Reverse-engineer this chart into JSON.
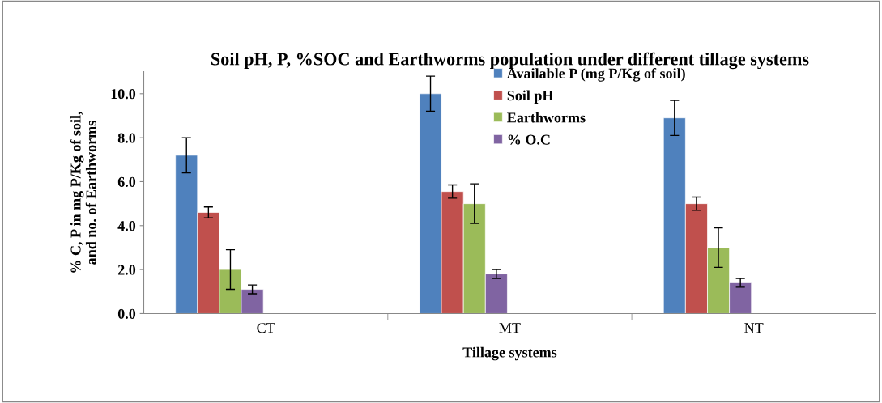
{
  "chart_data": {
    "type": "bar",
    "title": "Soil pH, P, %SOC and Earthworms population under different tillage systems",
    "xlabel": "Tillage systems",
    "ylabel": "% C, P in mg P/Kg of soil,\nand no. of Earthworms",
    "categories": [
      "CT",
      "MT",
      "NT"
    ],
    "series": [
      {
        "name": "Available P (mg P/Kg of soil)",
        "color": "#4f81bd",
        "values": [
          7.2,
          10.0,
          8.9
        ],
        "errors": [
          0.8,
          0.8,
          0.8
        ]
      },
      {
        "name": "Soil pH",
        "color": "#c0504d",
        "values": [
          4.6,
          5.55,
          5.0
        ],
        "errors": [
          0.25,
          0.3,
          0.3
        ]
      },
      {
        "name": "Earthworms",
        "color": "#9bbb59",
        "values": [
          2.0,
          5.0,
          3.0
        ],
        "errors": [
          0.9,
          0.9,
          0.9
        ]
      },
      {
        "name": "% O.C",
        "color": "#8064a2",
        "values": [
          1.1,
          1.8,
          1.4
        ],
        "errors": [
          0.2,
          0.2,
          0.2
        ]
      }
    ],
    "ylim": [
      0,
      11
    ],
    "yticks": [
      {
        "value": 0,
        "label": "0.0"
      },
      {
        "value": 2,
        "label": "2.0"
      },
      {
        "value": 4,
        "label": "4.0"
      },
      {
        "value": 6,
        "label": "6.0"
      },
      {
        "value": 8,
        "label": "8.0"
      },
      {
        "value": 10,
        "label": "10.0"
      }
    ],
    "grid": false,
    "legend": "top"
  }
}
